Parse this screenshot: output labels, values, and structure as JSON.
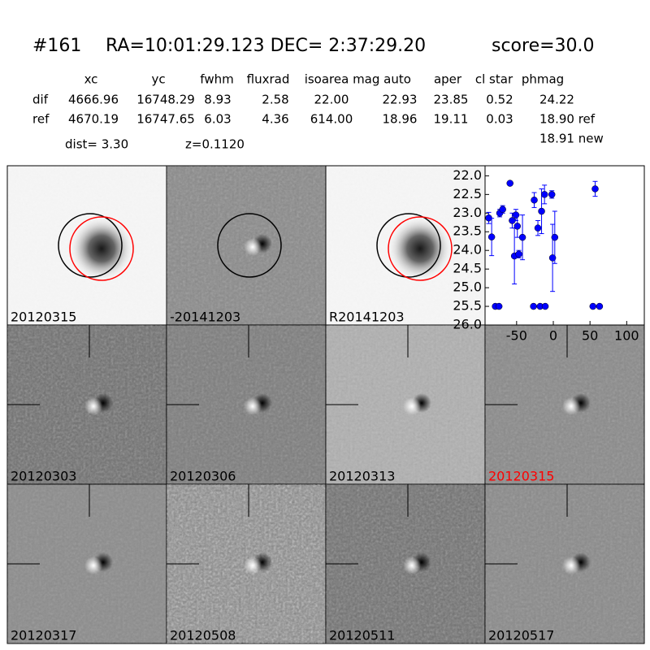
{
  "header": {
    "id": "#161",
    "coords": "RA=10:01:29.123 DEC= 2:37:29.20",
    "score": "score=30.0"
  },
  "table": {
    "columns": [
      "xc",
      "yc",
      "fwhm",
      "fluxrad",
      "isoarea",
      "mag auto",
      "aper",
      "cl star",
      "phmag"
    ],
    "rows": [
      [
        "dif",
        "4666.96",
        "16748.29",
        "8.93",
        "2.58",
        "22.00",
        "22.93",
        "23.85",
        "0.52",
        "24.22"
      ],
      [
        "ref",
        "4670.19",
        "16747.65",
        "6.03",
        "4.36",
        "614.00",
        "18.96",
        "19.11",
        "0.03",
        "18.90 ref"
      ]
    ],
    "extra": "18.91 new",
    "dist": "dist=  3.30",
    "z": "z=0.1120"
  },
  "panels": [
    {
      "label": "20120315"
    },
    {
      "label": "-20141203"
    },
    {
      "label": "R20141203"
    },
    {
      "label": "20120303"
    },
    {
      "label": "20120306"
    },
    {
      "label": "20120313"
    },
    {
      "label": "20120315",
      "color": "#ff0000"
    },
    {
      "label": "20120317"
    },
    {
      "label": "20120508"
    },
    {
      "label": "20120511"
    },
    {
      "label": "20120517"
    }
  ],
  "chart_data": {
    "type": "scatter",
    "color": "#0000ff",
    "x": [
      -88,
      -84,
      -79,
      -74,
      -73,
      -69,
      -59,
      -56,
      -53,
      -51,
      -49,
      -47,
      -42,
      -27,
      -18,
      -26,
      -21,
      -16,
      -12,
      -11,
      -2,
      -1,
      2,
      57,
      54,
      63
    ],
    "values": [
      23.13,
      23.64,
      25.5,
      25.5,
      23.0,
      22.9,
      22.2,
      23.2,
      24.15,
      23.05,
      23.35,
      24.1,
      23.65,
      25.5,
      25.5,
      22.65,
      23.4,
      22.95,
      22.5,
      25.5,
      22.5,
      24.2,
      23.65,
      22.35,
      25.5,
      25.5
    ],
    "errors": [
      0.15,
      0.5,
      0,
      0,
      0.1,
      0.1,
      0.05,
      0.2,
      0.75,
      0.15,
      0.3,
      0.1,
      0.6,
      0,
      0,
      0.2,
      0.2,
      0.6,
      0.25,
      0,
      0.1,
      0.9,
      0.7,
      0.2,
      0,
      0
    ],
    "xlim": [
      -93,
      124
    ],
    "xticks": [
      -50,
      0,
      50,
      100
    ],
    "ylim": [
      26,
      21.73
    ],
    "yticks": [
      {
        "value": 22,
        "label": "22.0"
      },
      {
        "value": 22.5,
        "label": "22.5"
      },
      {
        "value": 23,
        "label": "23.0"
      },
      {
        "value": 23.5,
        "label": "23.5"
      },
      {
        "value": 24,
        "label": "24.0"
      },
      {
        "value": 24.5,
        "label": "24.5"
      },
      {
        "value": 25,
        "label": "25.0"
      },
      {
        "value": 25.5,
        "label": "25.5"
      },
      {
        "value": 26,
        "label": "26.0"
      }
    ]
  }
}
